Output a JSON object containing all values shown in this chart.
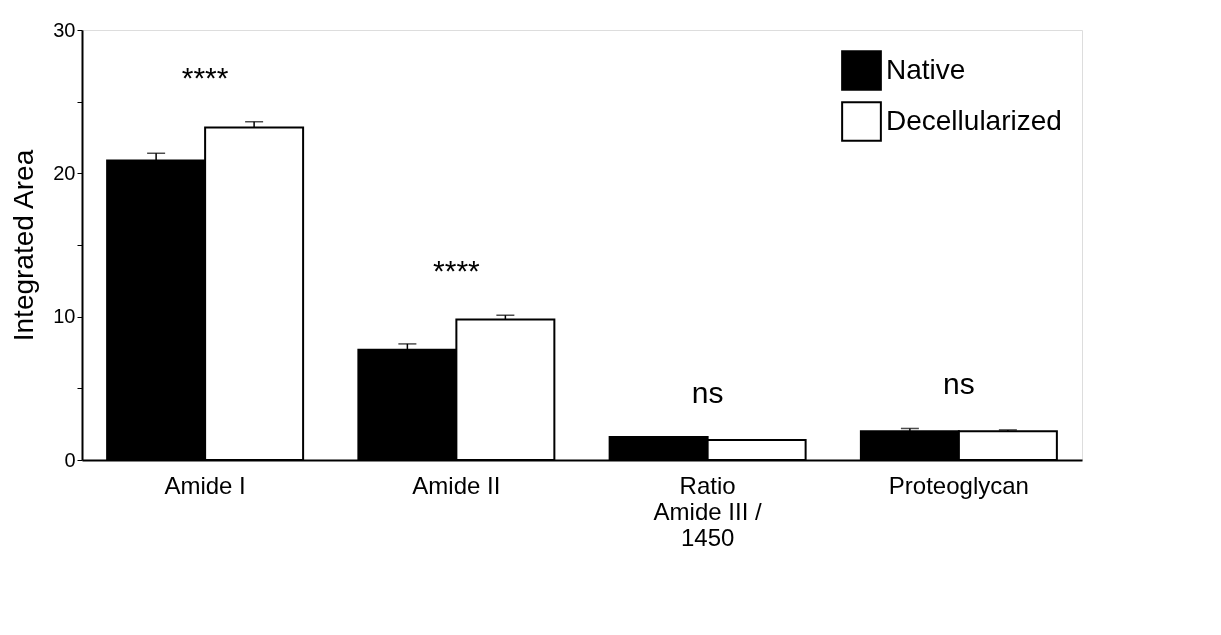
{
  "chart_data": {
    "type": "bar",
    "ylabel": "Integrated Area",
    "categories": [
      "Amide I",
      "Amide II",
      "Ratio\nAmide III /\n1450",
      "Proteoglycan"
    ],
    "series": [
      {
        "name": "Native",
        "color": "#000000",
        "values": [
          20.9,
          7.7,
          1.6,
          2.0
        ],
        "errors": [
          [
            20.9,
            21.4
          ],
          [
            7.7,
            8.1
          ],
          null,
          [
            2.0,
            2.2
          ]
        ]
      },
      {
        "name": "Decellularized",
        "color": "#ffffff",
        "values": [
          23.2,
          9.8,
          1.4,
          2.0
        ],
        "errors": [
          [
            23.2,
            23.6
          ],
          [
            9.8,
            10.1
          ],
          null,
          [
            2.0,
            2.1
          ]
        ]
      }
    ],
    "ylim": [
      0,
      30
    ],
    "yticks": [
      0,
      {
        "value": 5,
        "label": null
      },
      10,
      {
        "value": 15,
        "label": null
      },
      20,
      {
        "value": 25,
        "label": null
      },
      30
    ],
    "annotations": [
      "****",
      "****",
      "ns",
      "ns"
    ],
    "legend": "top right",
    "grid": false
  }
}
